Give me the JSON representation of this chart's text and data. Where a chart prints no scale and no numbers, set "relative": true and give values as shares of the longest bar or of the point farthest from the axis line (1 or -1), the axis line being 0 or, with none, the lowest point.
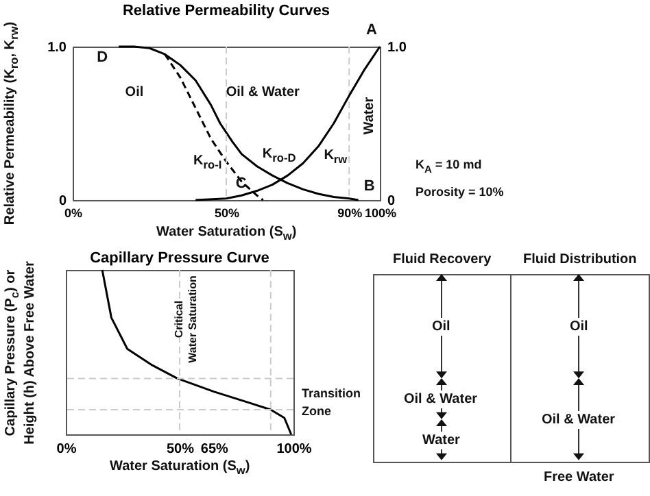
{
  "chart_data": [
    {
      "type": "line",
      "title": "Relative Permeability Curves",
      "xlabel": "Water Saturation (S$_{w}$)",
      "ylabel": "Relative Permeability (K$_{ro}$, K$_{rw}$)",
      "xlim": [
        0,
        100
      ],
      "xticks": [
        {
          "value": 0,
          "label": "0%"
        },
        {
          "value": 50,
          "label": "50%"
        },
        {
          "value": 90,
          "label": "90%"
        },
        {
          "value": 100,
          "label": "100%"
        }
      ],
      "ylim": [
        0,
        1
      ],
      "yticks": [
        0,
        {
          "value": 1,
          "label": "1.0"
        }
      ],
      "y2lim": [
        0,
        1
      ],
      "y2ticks": [
        0,
        {
          "value": 1,
          "label": "1.0"
        }
      ],
      "series": [
        {
          "name": "K$_{ro-D}$",
          "color": "#000000",
          "x": [
            15,
            20,
            25,
            30,
            35,
            40,
            45,
            48,
            52,
            55,
            60,
            65,
            70,
            75,
            80,
            85,
            90,
            93
          ],
          "values": [
            1,
            1,
            0.99,
            0.95,
            0.88,
            0.78,
            0.62,
            0.5,
            0.38,
            0.3,
            0.22,
            0.16,
            0.11,
            0.07,
            0.04,
            0.02,
            0.01,
            0
          ]
        },
        {
          "name": "K$_{ro-I}$",
          "color": "#000000",
          "line_style": "dashed",
          "x": [
            30,
            35,
            40,
            45,
            50,
            55,
            60,
            62
          ],
          "values": [
            0.95,
            0.8,
            0.6,
            0.4,
            0.25,
            0.12,
            0.03,
            0
          ]
        },
        {
          "name": "K$_{rw}$",
          "color": "#000000",
          "axis": "y2",
          "x": [
            40,
            50,
            55,
            60,
            65,
            70,
            75,
            80,
            85,
            90,
            95,
            100
          ],
          "values": [
            0,
            0.01,
            0.03,
            0.06,
            0.1,
            0.16,
            0.24,
            0.35,
            0.5,
            0.68,
            0.85,
            1
          ]
        }
      ],
      "ref_lines": [
        {
          "axis": "x",
          "value": 50,
          "color": "#cccccc",
          "line_style": "dashed"
        },
        {
          "axis": "x",
          "value": 90,
          "color": "#cccccc",
          "line_style": "dashed"
        }
      ],
      "annotations": [
        "Oil",
        "Oil & Water",
        "Water",
        {
          "text": "D",
          "x": 15,
          "y": 1
        },
        {
          "text": "A",
          "x": 100,
          "y": 1
        },
        {
          "text": "C",
          "x": 62,
          "y": 0
        },
        {
          "text": "B",
          "x": 93,
          "y": 0
        },
        "K$_{A}$ = 10 md",
        "Porosity = 10%"
      ]
    },
    {
      "type": "line",
      "title": "Capillary Pressure Curve",
      "xlabel": "Water Saturation (S$_{w}$)",
      "ylabel": "Capillary Pressure (P$_{c}$) or Height (h) Above Free Water",
      "relative": true,
      "xlim": [
        0,
        100
      ],
      "xticks": [
        {
          "value": 0,
          "label": "0%"
        },
        {
          "value": 50,
          "label": "50%"
        },
        {
          "value": 65,
          "label": "65%"
        },
        {
          "value": 100,
          "label": "100%"
        }
      ],
      "series": [
        {
          "color": "#000000",
          "x": [
            16,
            20,
            27,
            38,
            49,
            65,
            81,
            90,
            96,
            99
          ],
          "values": [
            1,
            0.71,
            0.52,
            0.42,
            0.34,
            0.26,
            0.19,
            0.15,
            0.1,
            0
          ]
        }
      ],
      "ref_lines": [
        {
          "axis": "x",
          "value": 50,
          "color": "#cccccc",
          "line_style": "dashed",
          "label": "Critical Water Saturation"
        },
        {
          "axis": "x",
          "value": 90,
          "color": "#cccccc",
          "line_style": "dashed"
        },
        {
          "axis": "y",
          "value": 0.34,
          "color": "#cccccc",
          "line_style": "dashed"
        },
        {
          "axis": "y",
          "value": 0.15,
          "color": "#cccccc",
          "line_style": "dashed"
        }
      ],
      "annotations": [
        "Transition Zone"
      ]
    },
    {
      "type": "other",
      "title": "Fluid Recovery",
      "annotations": [
        "Oil",
        "Oil & Water",
        "Water"
      ]
    },
    {
      "type": "other",
      "title": "Fluid Distribution",
      "annotations": [
        "Oil",
        "Oil & Water",
        "Free Water"
      ]
    }
  ]
}
